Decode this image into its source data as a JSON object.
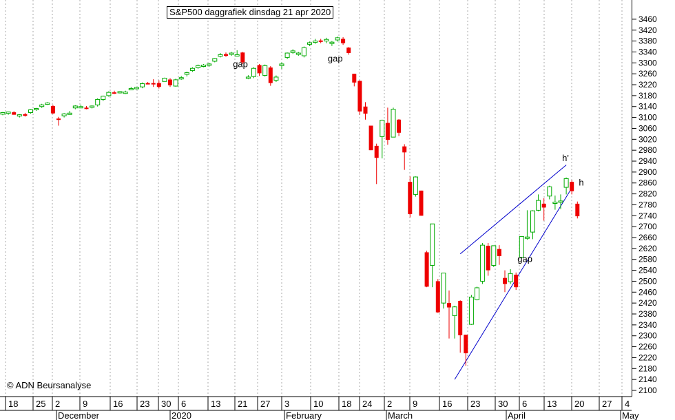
{
  "chart_data": {
    "type": "candlestick",
    "title": "S&P500 daggrafiek dinsdag 21 apr 2020",
    "copyright": "© ADN Beursanalyse",
    "ylim": [
      2100,
      3480
    ],
    "y_ticks": [
      2100,
      2140,
      2180,
      2220,
      2260,
      2300,
      2340,
      2380,
      2420,
      2460,
      2500,
      2540,
      2580,
      2620,
      2660,
      2700,
      2740,
      2780,
      2820,
      2860,
      2900,
      2940,
      2980,
      3020,
      3060,
      3100,
      3140,
      3180,
      3220,
      3260,
      3300,
      3340,
      3380,
      3420,
      3460
    ],
    "x_day_labels": [
      "18",
      "25",
      "2",
      "9",
      "16",
      "23",
      "30",
      "6",
      "13",
      "21",
      "27",
      "3",
      "10",
      "18",
      "24",
      "2",
      "9",
      "16",
      "23",
      "30",
      "6",
      "13",
      "20",
      "27",
      "4"
    ],
    "months": [
      "December",
      "2020",
      "February",
      "March",
      "April",
      "May"
    ],
    "candles": [
      {
        "o": 3112,
        "h": 3120,
        "l": 3108,
        "c": 3118
      },
      {
        "o": 3115,
        "h": 3121,
        "l": 3110,
        "c": 3120
      },
      {
        "o": 3119,
        "h": 3123,
        "l": 3110,
        "c": 3110
      },
      {
        "o": 3108,
        "h": 3112,
        "l": 3100,
        "c": 3110
      },
      {
        "o": 3112,
        "h": 3117,
        "l": 3103,
        "c": 3106
      },
      {
        "o": 3118,
        "h": 3130,
        "l": 3114,
        "c": 3128
      },
      {
        "o": 3128,
        "h": 3135,
        "l": 3124,
        "c": 3133
      },
      {
        "o": 3140,
        "h": 3150,
        "l": 3135,
        "c": 3146
      },
      {
        "o": 3150,
        "h": 3156,
        "l": 3146,
        "c": 3153
      },
      {
        "o": 3142,
        "h": 3146,
        "l": 3112,
        "c": 3115
      },
      {
        "o": 3096,
        "h": 3102,
        "l": 3070,
        "c": 3094
      },
      {
        "o": 3106,
        "h": 3116,
        "l": 3100,
        "c": 3113
      },
      {
        "o": 3115,
        "h": 3124,
        "l": 3110,
        "c": 3116
      },
      {
        "o": 3135,
        "h": 3145,
        "l": 3130,
        "c": 3142
      },
      {
        "o": 3140,
        "h": 3147,
        "l": 3134,
        "c": 3140
      },
      {
        "o": 3136,
        "h": 3142,
        "l": 3130,
        "c": 3135
      },
      {
        "o": 3138,
        "h": 3144,
        "l": 3133,
        "c": 3142
      },
      {
        "o": 3146,
        "h": 3170,
        "l": 3140,
        "c": 3166
      },
      {
        "o": 3166,
        "h": 3180,
        "l": 3160,
        "c": 3178
      },
      {
        "o": 3180,
        "h": 3196,
        "l": 3176,
        "c": 3192
      },
      {
        "o": 3192,
        "h": 3198,
        "l": 3186,
        "c": 3191
      },
      {
        "o": 3193,
        "h": 3197,
        "l": 3188,
        "c": 3195
      },
      {
        "o": 3190,
        "h": 3198,
        "l": 3186,
        "c": 3193
      },
      {
        "o": 3206,
        "h": 3212,
        "l": 3200,
        "c": 3206
      },
      {
        "o": 3206,
        "h": 3212,
        "l": 3203,
        "c": 3210
      },
      {
        "o": 3212,
        "h": 3228,
        "l": 3207,
        "c": 3224
      },
      {
        "o": 3226,
        "h": 3230,
        "l": 3222,
        "c": 3224
      },
      {
        "o": 3226,
        "h": 3240,
        "l": 3212,
        "c": 3222
      },
      {
        "o": 3226,
        "h": 3236,
        "l": 3206,
        "c": 3212
      },
      {
        "o": 3232,
        "h": 3246,
        "l": 3232,
        "c": 3244
      },
      {
        "o": 3239,
        "h": 3244,
        "l": 3212,
        "c": 3218
      },
      {
        "o": 3215,
        "h": 3242,
        "l": 3213,
        "c": 3238
      },
      {
        "o": 3242,
        "h": 3252,
        "l": 3238,
        "c": 3246
      },
      {
        "o": 3258,
        "h": 3268,
        "l": 3250,
        "c": 3264
      },
      {
        "o": 3272,
        "h": 3284,
        "l": 3267,
        "c": 3280
      },
      {
        "o": 3282,
        "h": 3294,
        "l": 3278,
        "c": 3290
      },
      {
        "o": 3290,
        "h": 3296,
        "l": 3284,
        "c": 3292
      },
      {
        "o": 3292,
        "h": 3300,
        "l": 3286,
        "c": 3296
      },
      {
        "o": 3306,
        "h": 3318,
        "l": 3302,
        "c": 3316
      },
      {
        "o": 3324,
        "h": 3336,
        "l": 3320,
        "c": 3330
      },
      {
        "o": 3332,
        "h": 3338,
        "l": 3322,
        "c": 3326
      },
      {
        "o": 3336,
        "h": 3340,
        "l": 3326,
        "c": 3336
      },
      {
        "o": 3330,
        "h": 3346,
        "l": 3324,
        "c": 3330
      },
      {
        "o": 3338,
        "h": 3340,
        "l": 3296,
        "c": 3302
      },
      {
        "o": 3246,
        "h": 3255,
        "l": 3240,
        "c": 3248
      },
      {
        "o": 3250,
        "h": 3284,
        "l": 3244,
        "c": 3280
      },
      {
        "o": 3292,
        "h": 3296,
        "l": 3252,
        "c": 3262
      },
      {
        "o": 3254,
        "h": 3294,
        "l": 3250,
        "c": 3290
      },
      {
        "o": 3283,
        "h": 3288,
        "l": 3216,
        "c": 3226
      },
      {
        "o": 3236,
        "h": 3254,
        "l": 3230,
        "c": 3248
      },
      {
        "o": 3290,
        "h": 3302,
        "l": 3278,
        "c": 3296
      },
      {
        "o": 3320,
        "h": 3338,
        "l": 3314,
        "c": 3336
      },
      {
        "o": 3338,
        "h": 3350,
        "l": 3333,
        "c": 3344
      },
      {
        "o": 3334,
        "h": 3340,
        "l": 3326,
        "c": 3336
      },
      {
        "o": 3326,
        "h": 3360,
        "l": 3320,
        "c": 3356
      },
      {
        "o": 3368,
        "h": 3378,
        "l": 3362,
        "c": 3374
      },
      {
        "o": 3376,
        "h": 3388,
        "l": 3370,
        "c": 3380
      },
      {
        "o": 3382,
        "h": 3388,
        "l": 3372,
        "c": 3378
      },
      {
        "o": 3380,
        "h": 3392,
        "l": 3372,
        "c": 3386
      },
      {
        "o": 3376,
        "h": 3380,
        "l": 3362,
        "c": 3376
      },
      {
        "o": 3384,
        "h": 3396,
        "l": 3378,
        "c": 3392
      },
      {
        "o": 3388,
        "h": 3394,
        "l": 3366,
        "c": 3372
      },
      {
        "o": 3356,
        "h": 3358,
        "l": 3330,
        "c": 3336
      },
      {
        "o": 3260,
        "h": 3260,
        "l": 3214,
        "c": 3228
      },
      {
        "o": 3234,
        "h": 3236,
        "l": 3110,
        "c": 3122
      },
      {
        "o": 3140,
        "h": 3156,
        "l": 3092,
        "c": 3114
      },
      {
        "o": 3070,
        "h": 3070,
        "l": 2980,
        "c": 2980
      },
      {
        "o": 2996,
        "h": 3004,
        "l": 2856,
        "c": 2952
      },
      {
        "o": 3030,
        "h": 3092,
        "l": 2950,
        "c": 3090
      },
      {
        "o": 3080,
        "h": 3136,
        "l": 3000,
        "c": 3018
      },
      {
        "o": 3028,
        "h": 3136,
        "l": 3028,
        "c": 3130
      },
      {
        "o": 3092,
        "h": 3094,
        "l": 3032,
        "c": 3044
      },
      {
        "o": 2994,
        "h": 3002,
        "l": 2908,
        "c": 2972
      },
      {
        "o": 2864,
        "h": 2884,
        "l": 2734,
        "c": 2746
      },
      {
        "o": 2818,
        "h": 2884,
        "l": 2810,
        "c": 2882
      },
      {
        "o": 2832,
        "h": 2832,
        "l": 2740,
        "c": 2740
      },
      {
        "o": 2606,
        "h": 2612,
        "l": 2478,
        "c": 2480
      },
      {
        "o": 2558,
        "h": 2710,
        "l": 2478,
        "c": 2710
      },
      {
        "o": 2500,
        "h": 2508,
        "l": 2384,
        "c": 2386
      },
      {
        "o": 2420,
        "h": 2530,
        "l": 2400,
        "c": 2530
      },
      {
        "o": 2420,
        "h": 2466,
        "l": 2290,
        "c": 2404
      },
      {
        "o": 2374,
        "h": 2410,
        "l": 2290,
        "c": 2406
      },
      {
        "o": 2428,
        "h": 2430,
        "l": 2238,
        "c": 2302
      },
      {
        "o": 2304,
        "h": 2304,
        "l": 2190,
        "c": 2236
      },
      {
        "o": 2342,
        "h": 2450,
        "l": 2340,
        "c": 2442
      },
      {
        "o": 2432,
        "h": 2480,
        "l": 2430,
        "c": 2476
      },
      {
        "o": 2500,
        "h": 2640,
        "l": 2490,
        "c": 2632
      },
      {
        "o": 2630,
        "h": 2640,
        "l": 2520,
        "c": 2540
      },
      {
        "o": 2558,
        "h": 2628,
        "l": 2552,
        "c": 2630
      },
      {
        "o": 2618,
        "h": 2632,
        "l": 2560,
        "c": 2592
      },
      {
        "o": 2512,
        "h": 2540,
        "l": 2460,
        "c": 2490
      },
      {
        "o": 2498,
        "h": 2544,
        "l": 2490,
        "c": 2528
      },
      {
        "o": 2524,
        "h": 2532,
        "l": 2468,
        "c": 2478
      },
      {
        "o": 2588,
        "h": 2664,
        "l": 2586,
        "c": 2664
      },
      {
        "o": 2662,
        "h": 2760,
        "l": 2652,
        "c": 2662
      },
      {
        "o": 2680,
        "h": 2760,
        "l": 2654,
        "c": 2758
      },
      {
        "o": 2760,
        "h": 2818,
        "l": 2756,
        "c": 2796
      },
      {
        "o": 2784,
        "h": 2804,
        "l": 2722,
        "c": 2770
      },
      {
        "o": 2812,
        "h": 2850,
        "l": 2800,
        "c": 2846
      },
      {
        "o": 2790,
        "h": 2814,
        "l": 2762,
        "c": 2790
      },
      {
        "o": 2790,
        "h": 2818,
        "l": 2764,
        "c": 2794
      },
      {
        "o": 2844,
        "h": 2880,
        "l": 2818,
        "c": 2876
      },
      {
        "o": 2864,
        "h": 2870,
        "l": 2818,
        "c": 2830
      },
      {
        "o": 2784,
        "h": 2792,
        "l": 2730,
        "c": 2738
      }
    ],
    "trendlines": [
      {
        "name": "h'",
        "p1": {
          "day": 82,
          "price": 2600
        },
        "p2": {
          "day": 101,
          "price": 2926
        }
      },
      {
        "name": "h",
        "p1": {
          "day": 81,
          "price": 2140
        },
        "p2": {
          "day": 102,
          "price": 2842
        }
      }
    ],
    "annotations": [
      {
        "text": "gap",
        "day": 42,
        "price": 3285,
        "color": "#b3b3b3"
      },
      {
        "text": "gap",
        "day": 59,
        "price": 3305,
        "color": "#000000"
      },
      {
        "text": "gap",
        "day": 93,
        "price": 2570,
        "color": "#000000"
      },
      {
        "text": "h'",
        "day": 101,
        "price": 2940,
        "color": "#0000cc"
      },
      {
        "text": "h",
        "day": 104,
        "price": 2850,
        "color": "#0000cc"
      }
    ],
    "colors": {
      "up": "#00aa00",
      "down": "#ee0000",
      "trend": "#0000cc",
      "grid": "#aaaaaa"
    }
  }
}
